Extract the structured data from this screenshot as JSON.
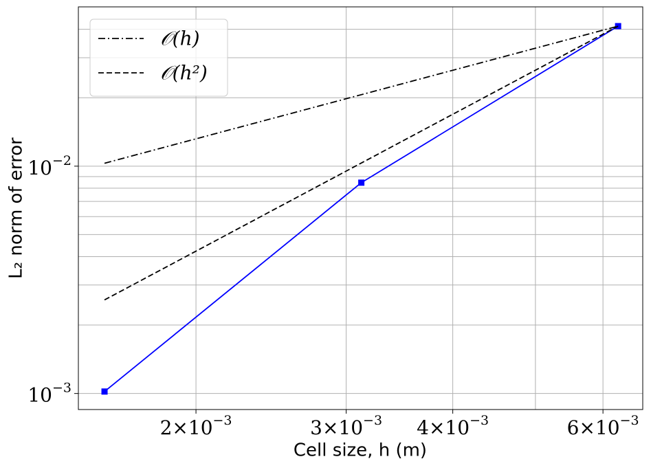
{
  "chart_data": {
    "type": "line",
    "log_x": true,
    "log_y": true,
    "grid": true,
    "legend": "upper left",
    "xlabel": "Cell size, h (m)",
    "ylabel": "L₂ norm of error",
    "xlim": [
      0.001456,
      0.00668
    ],
    "ylim": [
      0.00085,
      0.0502
    ],
    "xticks": [
      {
        "value": 0.002,
        "label": "2×10−3"
      },
      {
        "value": 0.003,
        "label": "3×10−3"
      },
      {
        "value": 0.004,
        "label": "4×10−3"
      },
      {
        "value": 0.006,
        "label": "6×10−3"
      }
    ],
    "x_minor_ticks": [
      0.005
    ],
    "yticks": [
      {
        "value": 0.001,
        "label": "10−3"
      },
      {
        "value": 0.01,
        "label": "10−2"
      }
    ],
    "y_minor_ticks": [
      0.002,
      0.003,
      0.004,
      0.005,
      0.006,
      0.007,
      0.008,
      0.009,
      0.02,
      0.03,
      0.04
    ],
    "x": [
      0.0015625,
      0.003125,
      0.00625
    ],
    "series": [
      {
        "color": "#0000ff",
        "dash": "solid",
        "marker": "square",
        "values": [
          0.00102,
          0.00846,
          0.0413
        ]
      },
      {
        "name": "𝒪(h)",
        "color": "#000000",
        "dash": "dashdot",
        "values": [
          0.0103,
          null,
          0.0413
        ]
      },
      {
        "name": "𝒪(h²)",
        "color": "#000000",
        "dash": "dashed",
        "values": [
          0.00258,
          null,
          0.0413
        ]
      }
    ]
  }
}
